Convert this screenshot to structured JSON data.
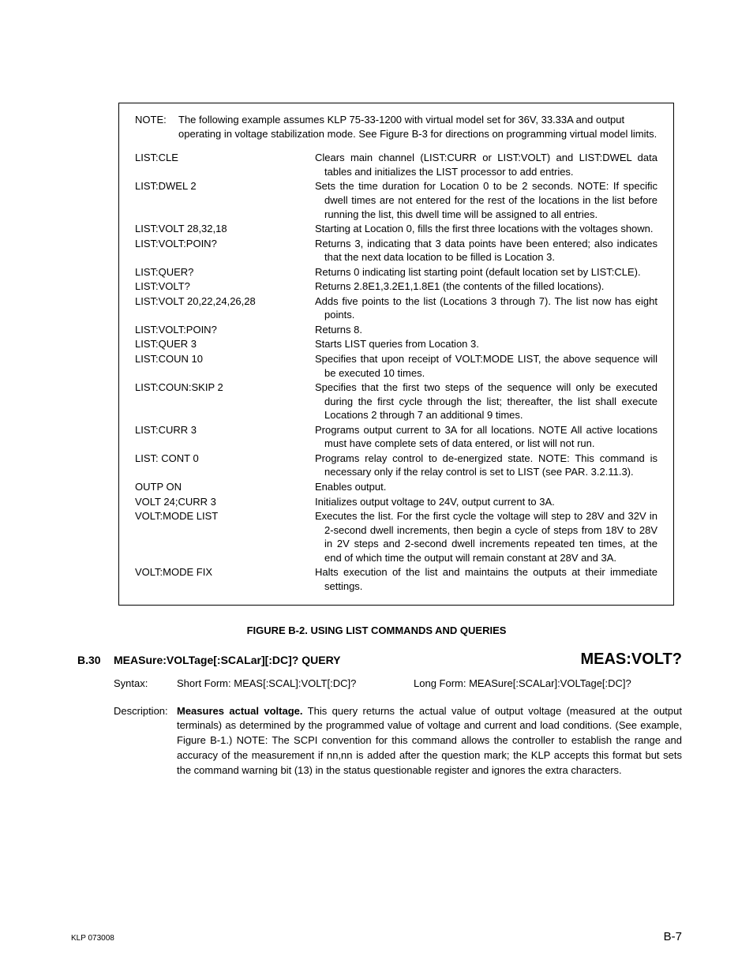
{
  "note": {
    "label": "NOTE:",
    "text": "The following example assumes KLP 75-33-1200 with virtual model set for 36V, 33.33A and output operating in voltage stabilization mode. See Figure B-3 for directions on programming virtual model limits."
  },
  "commands": [
    {
      "cmd": "LIST:CLE",
      "desc": "Clears main channel (LIST:CURR or LIST:VOLT) and LIST:DWEL data tables and initializes the LIST processor to add entries."
    },
    {
      "cmd": "LIST:DWEL 2",
      "desc": "Sets the time duration for Location 0 to be 2 seconds. NOTE: If specific dwell times are not entered for the rest of the locations in the list before running the list, this dwell time will be assigned to all entries."
    },
    {
      "cmd": "LIST:VOLT 28,32,18",
      "desc": "Starting at Location 0, fills the first three locations with the voltages shown."
    },
    {
      "cmd": "LIST:VOLT:POIN?",
      "desc": "Returns 3, indicating that 3 data points have been entered; also indicates that the next data location to be filled is Location 3."
    },
    {
      "cmd": "LIST:QUER?",
      "desc": "Returns 0 indicating list starting point (default location set by LIST:CLE)."
    },
    {
      "cmd": "LIST:VOLT?",
      "desc": "Returns 2.8E1,3.2E1,1.8E1 (the contents of the filled locations)."
    },
    {
      "cmd": "LIST:VOLT 20,22,24,26,28",
      "desc": "Adds five points to the list (Locations 3 through 7). The list now has eight points."
    },
    {
      "cmd": "LIST:VOLT:POIN?",
      "desc": "Returns 8."
    },
    {
      "cmd": "LIST:QUER 3",
      "desc": "Starts LIST queries from Location 3."
    },
    {
      "cmd": "LIST:COUN 10",
      "desc": "Specifies that upon receipt of VOLT:MODE LIST, the above sequence will be executed 10 times."
    },
    {
      "cmd": "LIST:COUN:SKIP 2",
      "desc": "Specifies that the first two steps of the sequence will only be executed during the first cycle through the list; thereafter, the list shall execute Locations 2 through 7 an additional 9 times."
    },
    {
      "cmd": "LIST:CURR 3",
      "desc": "Programs output current to 3A for all locations. NOTE All active locations must have complete sets of data entered, or list will not run."
    },
    {
      "cmd": "LIST: CONT 0",
      "desc": "Programs relay control to de-energized state. NOTE: This command is necessary only if the relay control is set to LIST (see PAR. 3.2.11.3)."
    },
    {
      "cmd": "OUTP ON",
      "desc": "Enables output."
    },
    {
      "cmd": "VOLT 24;CURR 3",
      "desc": "Initializes output voltage to 24V, output current to 3A."
    },
    {
      "cmd": "VOLT:MODE LIST",
      "desc": "Executes the list. For the first cycle the voltage will step to 28V and 32V in 2-second dwell increments, then begin a cycle of steps from 18V to 28V in 2V steps and 2-second dwell increments repeated ten times, at the end of which time the output will remain constant at 28V and 3A."
    },
    {
      "cmd": "VOLT:MODE FIX",
      "desc": "Halts execution of the list and maintains the outputs at their immediate settings."
    }
  ],
  "figure_caption": "FIGURE B-2.   USING LIST COMMANDS AND QUERIES",
  "section": {
    "num": "B.30",
    "title": "MEASure:VOLTage[:SCALar][:DC]? QUERY",
    "right": "MEAS:VOLT?"
  },
  "syntax": {
    "label": "Syntax:",
    "short": "Short Form: MEAS[:SCAL]:VOLT[:DC]?",
    "long": "Long Form: MEASure[:SCALar]:VOLTage[:DC]?"
  },
  "description": {
    "label": "Description:",
    "bold": "Measures actual voltage.",
    "body": " This query returns the actual value of output voltage (measured at the output terminals) as determined by the programmed value of voltage and current and load conditions. (See example, Figure B-1.) NOTE: The SCPI convention for this command allows the controller to establish the range and accuracy of the measurement if nn,nn is added after the question mark; the KLP accepts this format but sets the command warning bit (13) in the status questionable register and ignores the extra characters."
  },
  "footer": {
    "left": "KLP 073008",
    "right": "B-7"
  }
}
